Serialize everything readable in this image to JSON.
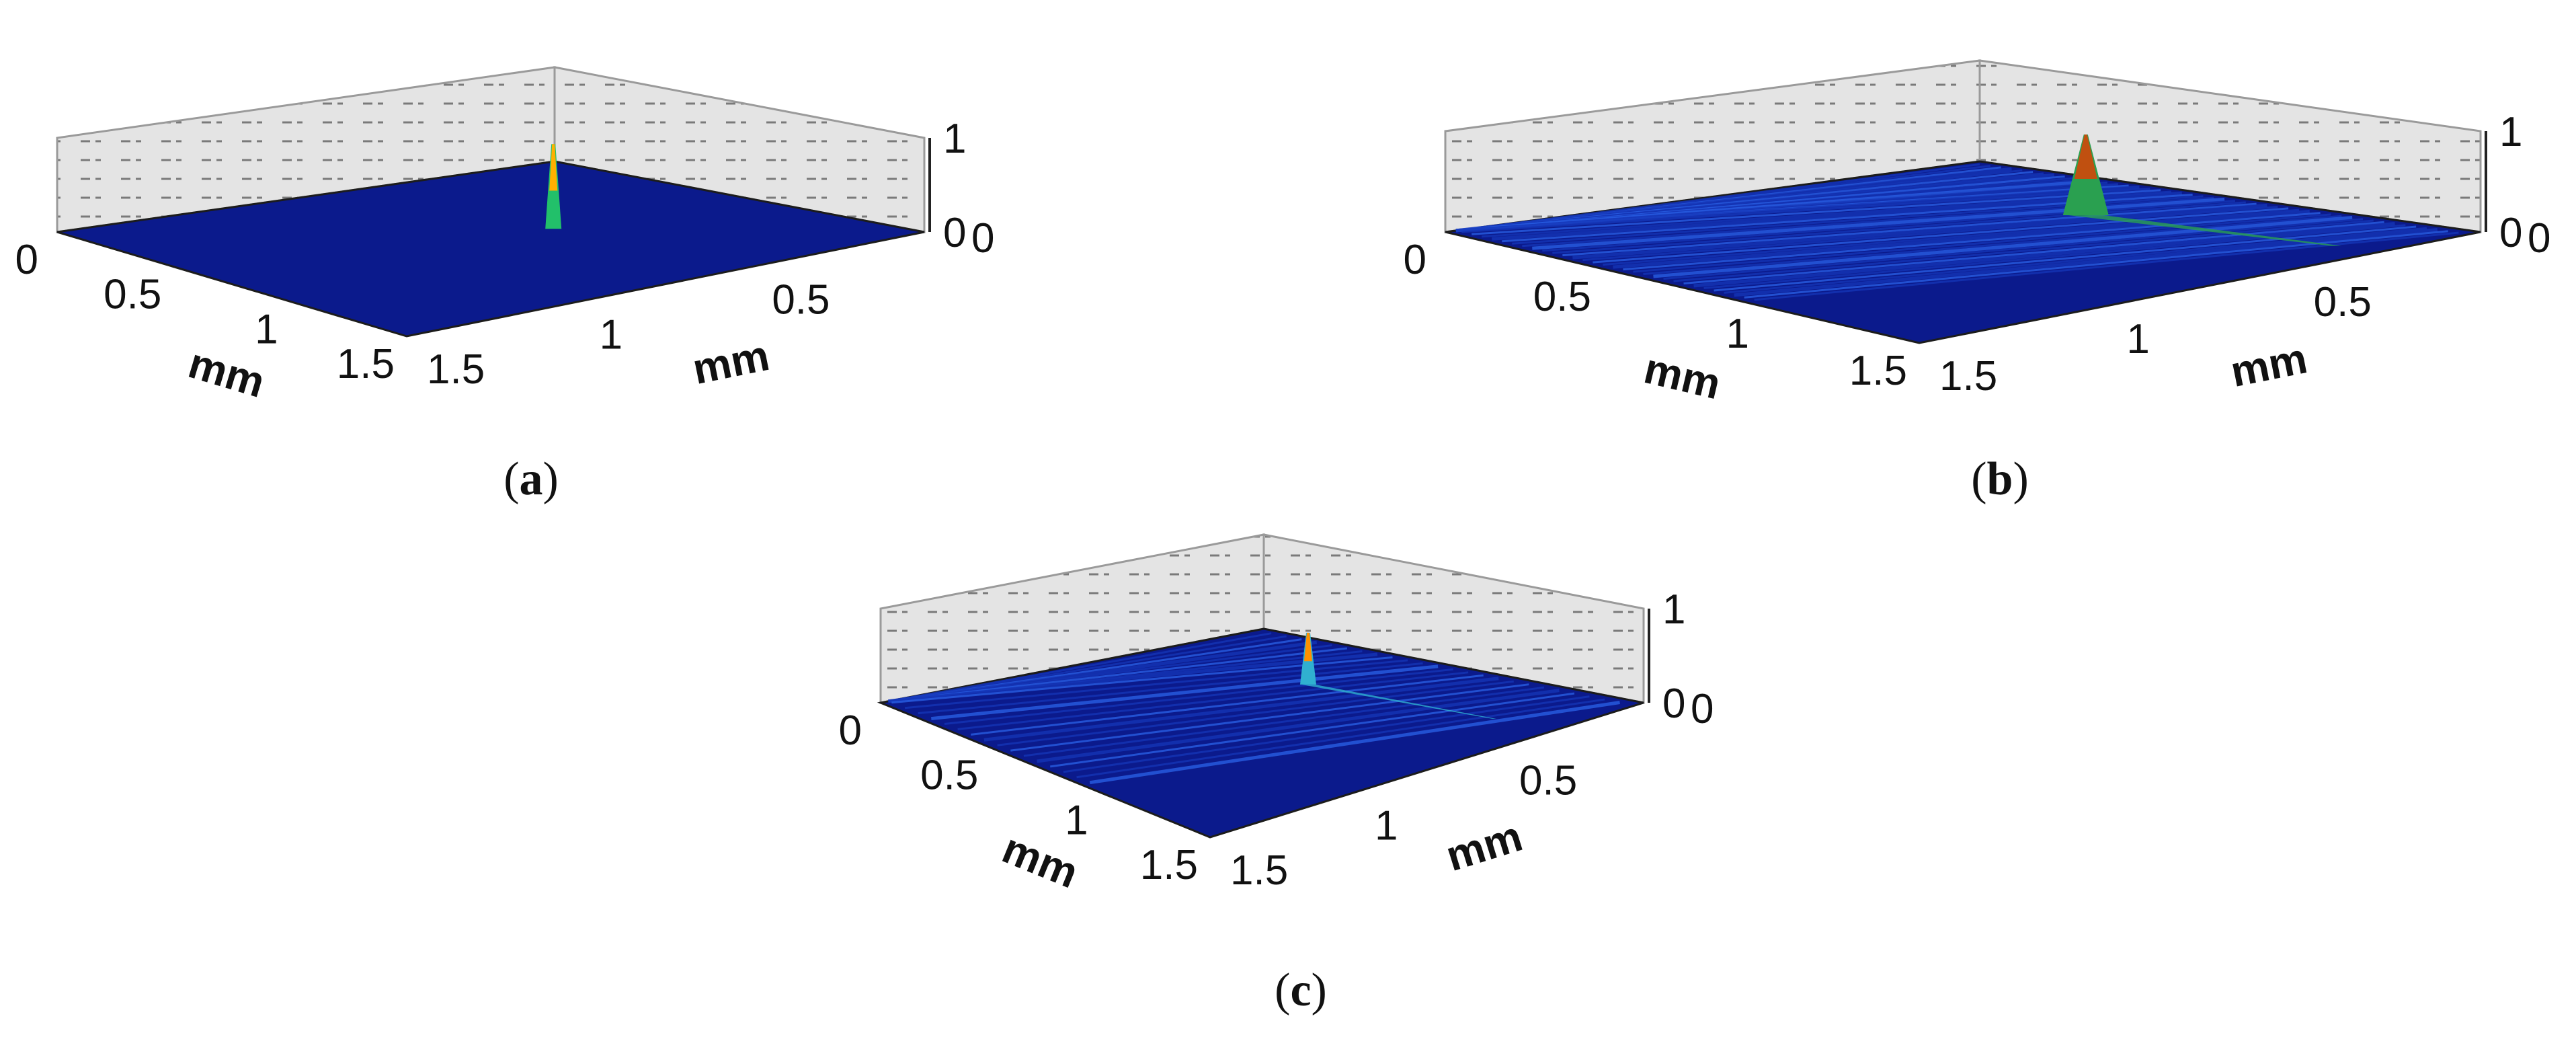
{
  "chart_data": [
    {
      "type": "surface",
      "panel_label": "a",
      "x": {
        "label": "mm",
        "ticks": [
          "0",
          "0.5",
          "1",
          "1.5"
        ],
        "range": [
          0,
          1.5
        ]
      },
      "y": {
        "label": "mm",
        "ticks": [
          "1.5",
          "1",
          "0.5",
          "0"
        ],
        "range": [
          0,
          1.5
        ]
      },
      "z": {
        "ticks": [
          "0",
          "1"
        ],
        "range": [
          0,
          1
        ]
      },
      "feature": {
        "kind": "spike",
        "x": 0.75,
        "y": 0.55,
        "peak": 0.9
      },
      "colors": {
        "base": "#0b1a8c",
        "peak": "#ffb000",
        "mid": "#22c06a"
      }
    },
    {
      "type": "surface",
      "panel_label": "b",
      "x": {
        "label": "mm",
        "ticks": [
          "0",
          "0.5",
          "1",
          "1.5"
        ],
        "range": [
          0,
          1.5
        ]
      },
      "y": {
        "label": "mm",
        "ticks": [
          "1.5",
          "1",
          "0.5",
          "0"
        ],
        "range": [
          0,
          1.5
        ]
      },
      "z": {
        "ticks": [
          "0",
          "1"
        ],
        "range": [
          0,
          1
        ]
      },
      "feature": {
        "kind": "ridge",
        "x": 0.7,
        "y": 0.35,
        "peak": 0.8
      },
      "colors": {
        "base": "#0b1a8c",
        "peak": "#c05010",
        "mid": "#2aa050"
      }
    },
    {
      "type": "surface",
      "panel_label": "c",
      "x": {
        "label": "mm",
        "ticks": [
          "0",
          "0.5",
          "1",
          "1.5"
        ],
        "range": [
          0,
          1.5
        ]
      },
      "y": {
        "label": "mm",
        "ticks": [
          "1.5",
          "1",
          "0.5",
          "0"
        ],
        "range": [
          0,
          1.5
        ]
      },
      "z": {
        "ticks": [
          "0",
          "1"
        ],
        "range": [
          0,
          1
        ]
      },
      "feature": {
        "kind": "spike-line",
        "x": 0.6,
        "y": 0.4,
        "peak": 0.55
      },
      "colors": {
        "base": "#0b1a8c",
        "peak": "#ff9000",
        "mid": "#30b0d0"
      }
    }
  ]
}
